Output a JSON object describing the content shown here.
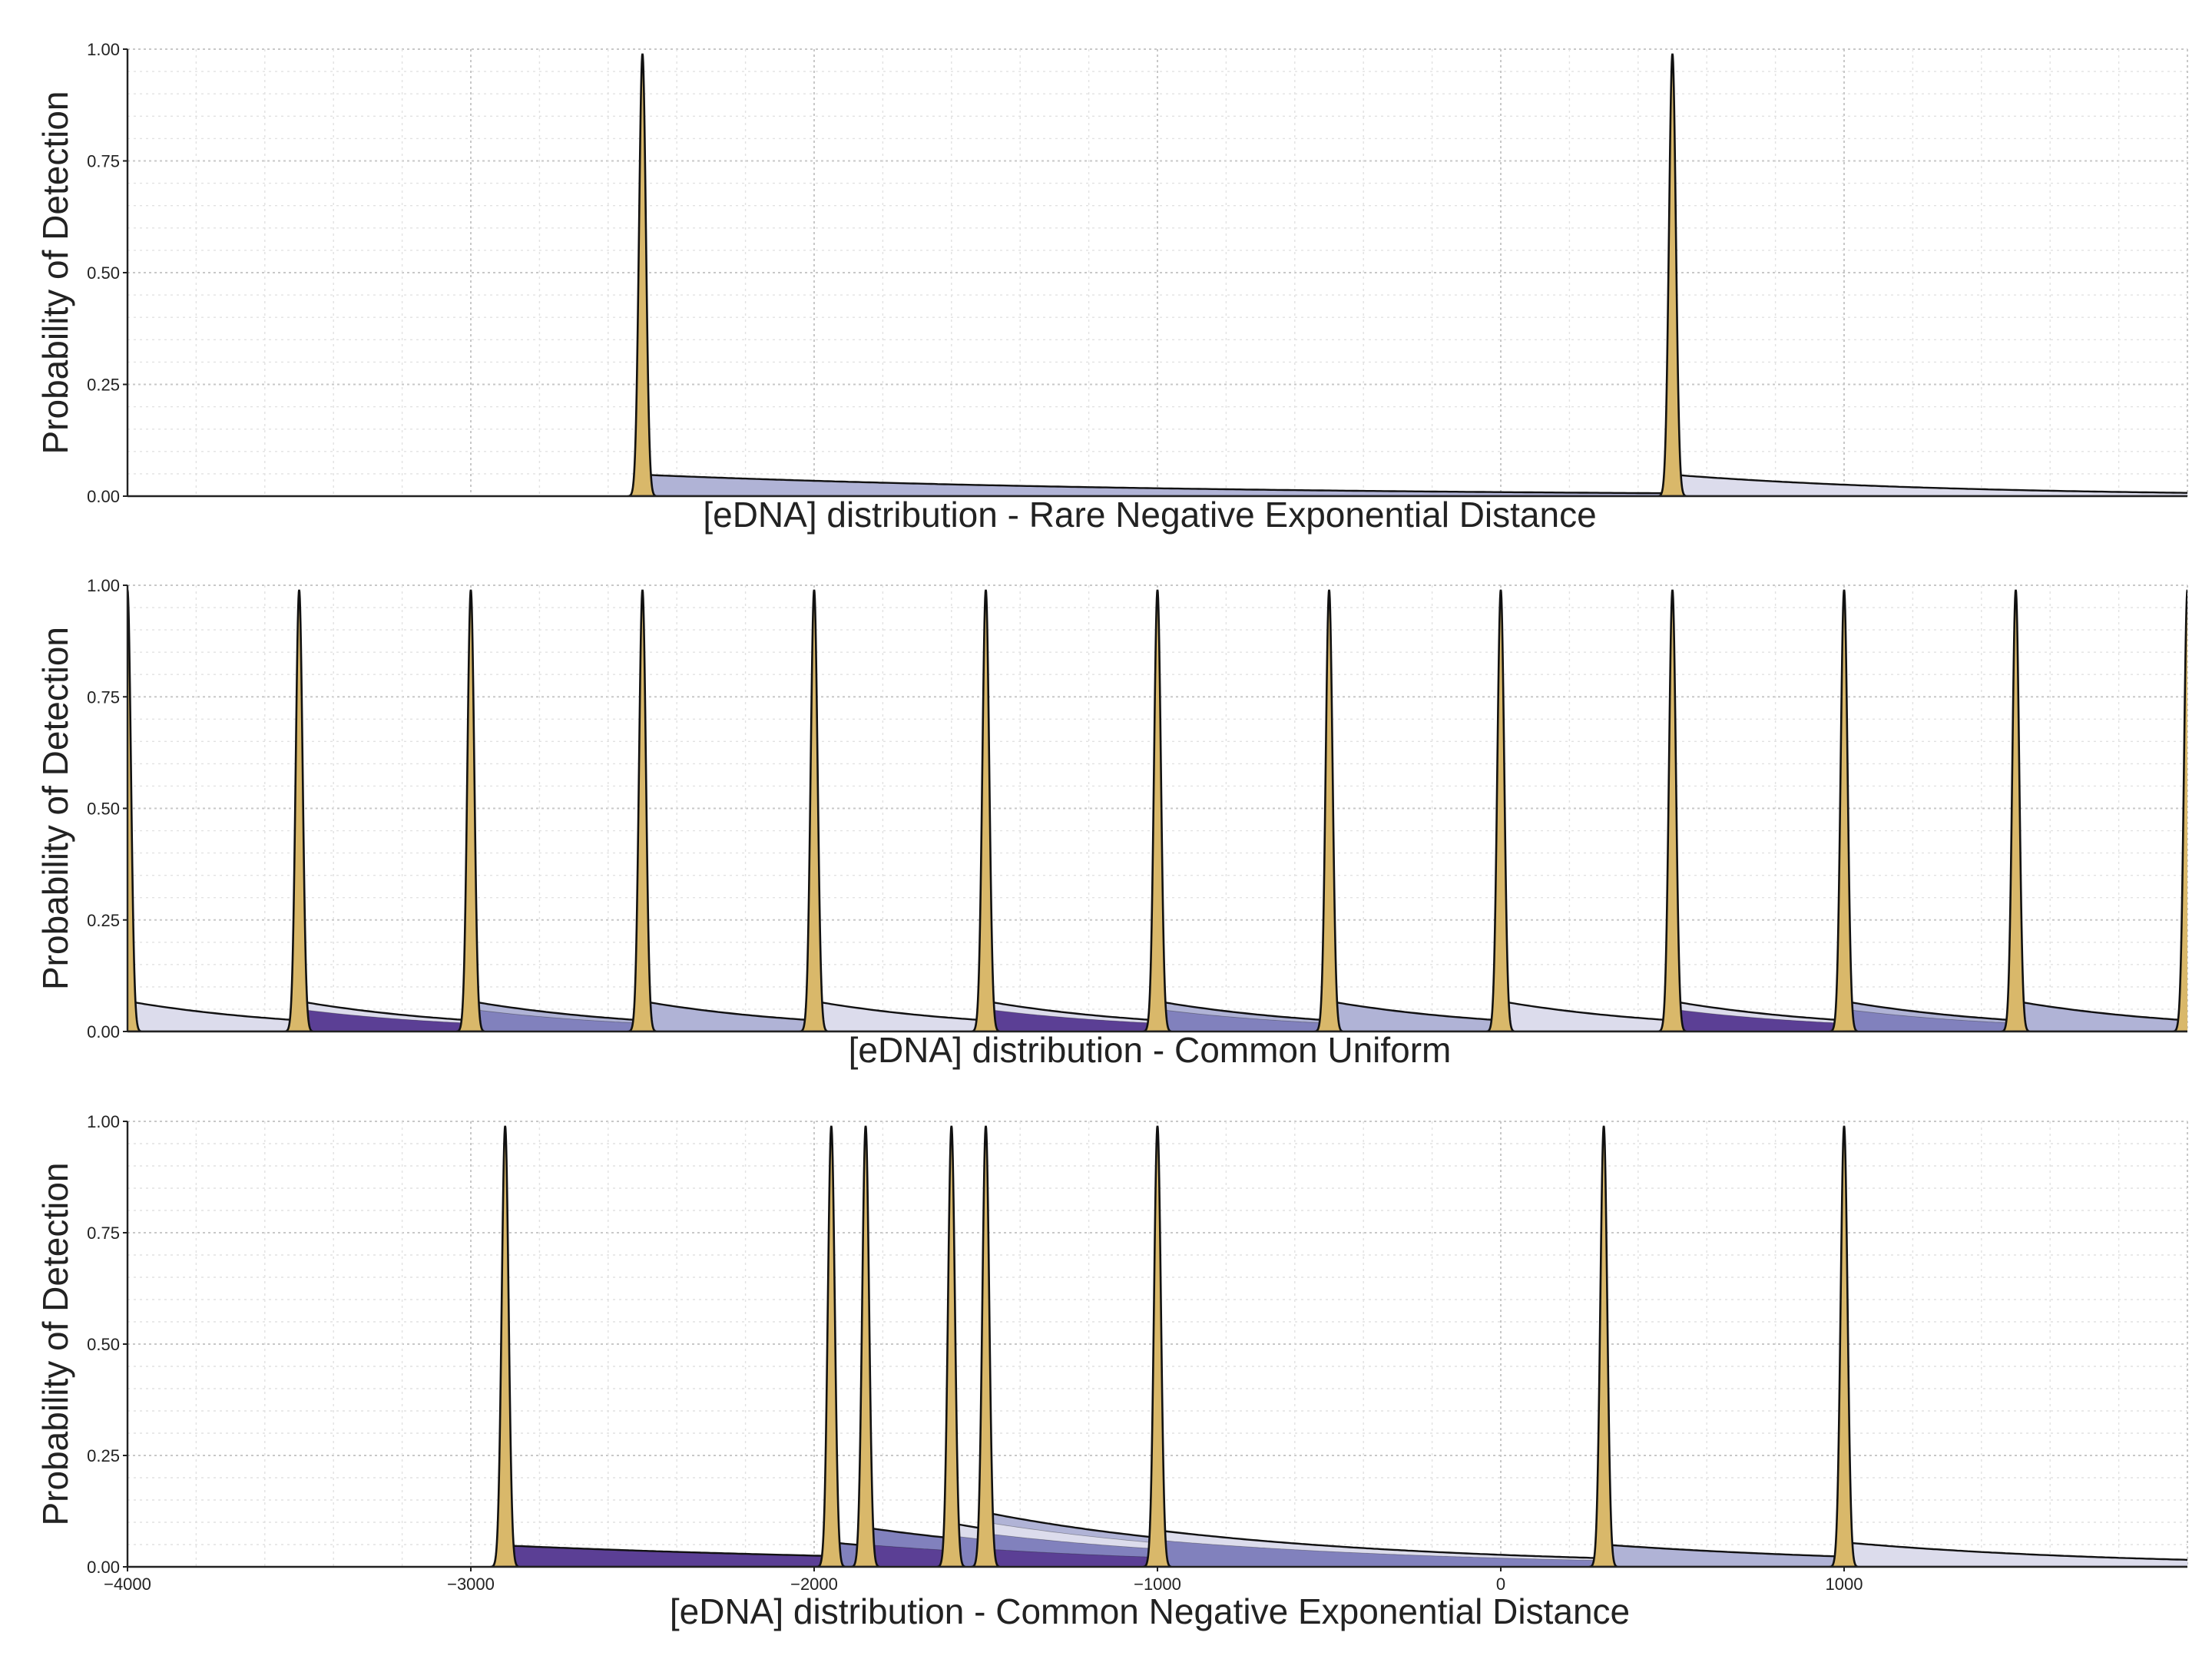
{
  "chart_data": [
    {
      "type": "area",
      "xlabel": "[eDNA] distribution - Rare Negative Exponential Distance",
      "ylabel": "Probability of Detection",
      "xlim": [
        -4000,
        2000
      ],
      "ylim": [
        0,
        1
      ],
      "yticks": [
        0,
        0.25,
        0.5,
        0.75,
        1.0
      ],
      "ytick_labels": [
        "0.00",
        "0.25",
        "0.50",
        "0.75",
        "1.00"
      ],
      "xticks": [],
      "grid": true,
      "peak_height": 0.99,
      "series": [
        {
          "peak": -2500,
          "tail_start": 0.048,
          "tail_decay": 1500,
          "tail_color": "#b0b3d6"
        },
        {
          "peak": 500,
          "tail_start": 0.048,
          "tail_decay": 800,
          "tail_color": "#dcdcec"
        }
      ]
    },
    {
      "type": "area",
      "xlabel": "[eDNA] distribution - Common Uniform",
      "ylabel": "Probability of Detection",
      "xlim": [
        -4000,
        2000
      ],
      "ylim": [
        0,
        1
      ],
      "yticks": [
        0,
        0.25,
        0.5,
        0.75,
        1.0
      ],
      "ytick_labels": [
        "0.00",
        "0.25",
        "0.50",
        "0.75",
        "1.00"
      ],
      "xticks": [],
      "grid": true,
      "peak_height": 0.99,
      "series": [
        {
          "peak": -4000,
          "tail_start": 0.068,
          "tail_decay": 500,
          "tail_color": "#dcdcec"
        },
        {
          "peak": -3500,
          "tail_start": 0.068,
          "tail_decay": 500,
          "tail_color": "#dcdcec",
          "inner": [
            {
              "start": 0.05,
              "color": "#5b3f95"
            }
          ]
        },
        {
          "peak": -3000,
          "tail_start": 0.068,
          "tail_decay": 500,
          "tail_color": "#b0b3d6",
          "inner": [
            {
              "start": 0.05,
              "color": "#8181bd"
            }
          ]
        },
        {
          "peak": -2500,
          "tail_start": 0.068,
          "tail_decay": 500,
          "tail_color": "#b0b3d6"
        },
        {
          "peak": -2000,
          "tail_start": 0.068,
          "tail_decay": 500,
          "tail_color": "#dcdcec"
        },
        {
          "peak": -1500,
          "tail_start": 0.068,
          "tail_decay": 500,
          "tail_color": "#dcdcec",
          "inner": [
            {
              "start": 0.05,
              "color": "#5b3f95"
            }
          ]
        },
        {
          "peak": -1000,
          "tail_start": 0.068,
          "tail_decay": 500,
          "tail_color": "#b0b3d6",
          "inner": [
            {
              "start": 0.05,
              "color": "#8181bd"
            }
          ]
        },
        {
          "peak": -500,
          "tail_start": 0.068,
          "tail_decay": 500,
          "tail_color": "#b0b3d6"
        },
        {
          "peak": 0,
          "tail_start": 0.068,
          "tail_decay": 500,
          "tail_color": "#dcdcec"
        },
        {
          "peak": 500,
          "tail_start": 0.068,
          "tail_decay": 500,
          "tail_color": "#dcdcec",
          "inner": [
            {
              "start": 0.05,
              "color": "#5b3f95"
            }
          ]
        },
        {
          "peak": 1000,
          "tail_start": 0.068,
          "tail_decay": 500,
          "tail_color": "#b0b3d6",
          "inner": [
            {
              "start": 0.05,
              "color": "#8181bd"
            }
          ]
        },
        {
          "peak": 1500,
          "tail_start": 0.068,
          "tail_decay": 500,
          "tail_color": "#b0b3d6"
        },
        {
          "peak": 2000,
          "tail_start": 0.068,
          "tail_decay": 500,
          "tail_color": "#b0b3d6"
        }
      ]
    },
    {
      "type": "area",
      "xlabel": "[eDNA] distribution - Common Negative Exponential Distance",
      "ylabel": "Probability of Detection",
      "xlim": [
        -4000,
        2000
      ],
      "ylim": [
        0,
        1
      ],
      "yticks": [
        0,
        0.25,
        0.5,
        0.75,
        1.0
      ],
      "ytick_labels": [
        "0.00",
        "0.25",
        "0.50",
        "0.75",
        "1.00"
      ],
      "xticks": [
        -4000,
        -3000,
        -2000,
        -1000,
        0,
        1000
      ],
      "xtick_labels": [
        "−4000",
        "−3000",
        "−2000",
        "−1000",
        "0",
        "1000"
      ],
      "grid": true,
      "peak_height": 0.99,
      "series": [
        {
          "peak": -2900,
          "tail_start": 0.048,
          "tail_decay": 1400,
          "tail_color": "#5b3f95"
        },
        {
          "peak": -1950,
          "tail_start": 0.055,
          "tail_decay": 700,
          "tail_color": "#8181bd"
        },
        {
          "peak": -1850,
          "tail_start": 0.088,
          "tail_decay": 800,
          "tail_color": "#8181bd",
          "inner": [
            {
              "start": 0.05,
              "color": "#5b3f95"
            }
          ]
        },
        {
          "peak": -1600,
          "tail_start": 0.098,
          "tail_decay": 700,
          "tail_color": "#dcdcec",
          "inner": [
            {
              "start": 0.07,
              "color": "#8181bd"
            }
          ]
        },
        {
          "peak": -1500,
          "tail_start": 0.122,
          "tail_decay": 800,
          "tail_color": "#b0b3d6",
          "inner": [
            {
              "start": 0.1,
              "color": "#dcdcec"
            },
            {
              "start": 0.075,
              "color": "#8181bd"
            },
            {
              "start": 0.04,
              "color": "#5b3f95"
            }
          ]
        },
        {
          "peak": -1000,
          "tail_start": 0.082,
          "tail_decay": 900,
          "tail_color": "#dcdcec",
          "inner": [
            {
              "start": 0.06,
              "color": "#8181bd"
            }
          ]
        },
        {
          "peak": 300,
          "tail_start": 0.05,
          "tail_decay": 900,
          "tail_color": "#b0b3d6"
        },
        {
          "peak": 1000,
          "tail_start": 0.055,
          "tail_decay": 800,
          "tail_color": "#dcdcec"
        }
      ]
    }
  ],
  "colors": {
    "peak_fill": "#d9b86a",
    "outline": "#111111",
    "grid": "#cfcfcf"
  }
}
